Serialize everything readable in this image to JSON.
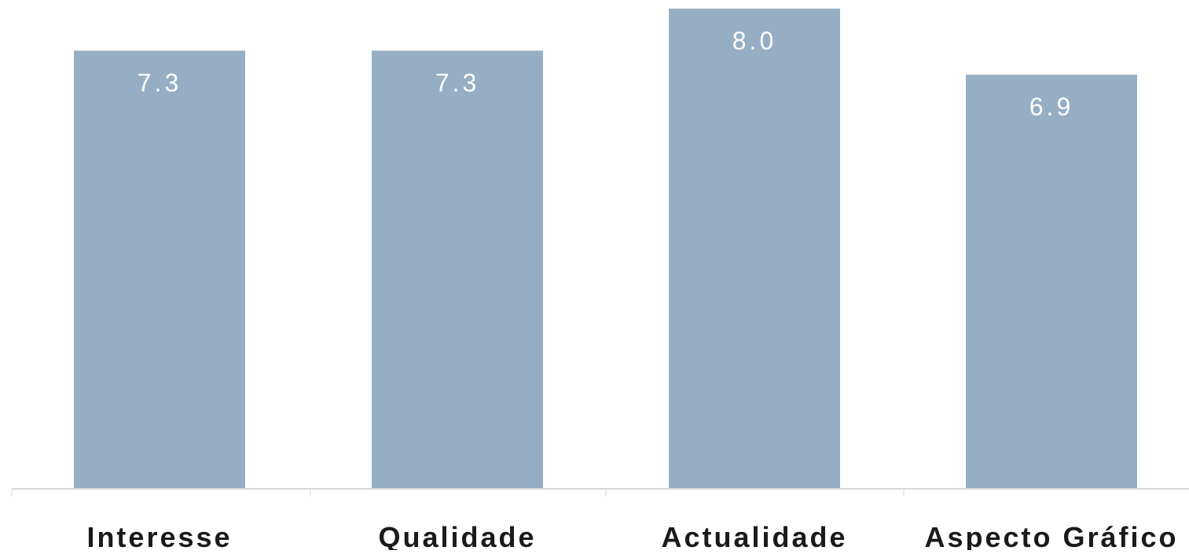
{
  "chart_data": {
    "type": "bar",
    "categories": [
      "Interesse",
      "Qualidade",
      "Actualidade",
      "Aspecto Gráfico"
    ],
    "values": [
      7.3,
      7.3,
      8.0,
      6.9
    ],
    "value_labels": [
      "7.3",
      "7.3",
      "8.0",
      "6.9"
    ],
    "title": "",
    "xlabel": "",
    "ylabel": "",
    "ylim": [
      0,
      8.0
    ],
    "grid": false,
    "legend": "none",
    "colors": {
      "bar": "#95aec4",
      "value_label": "#ffffff",
      "category_label": "#1a1a1a",
      "axis": "#d9d9d9"
    }
  }
}
